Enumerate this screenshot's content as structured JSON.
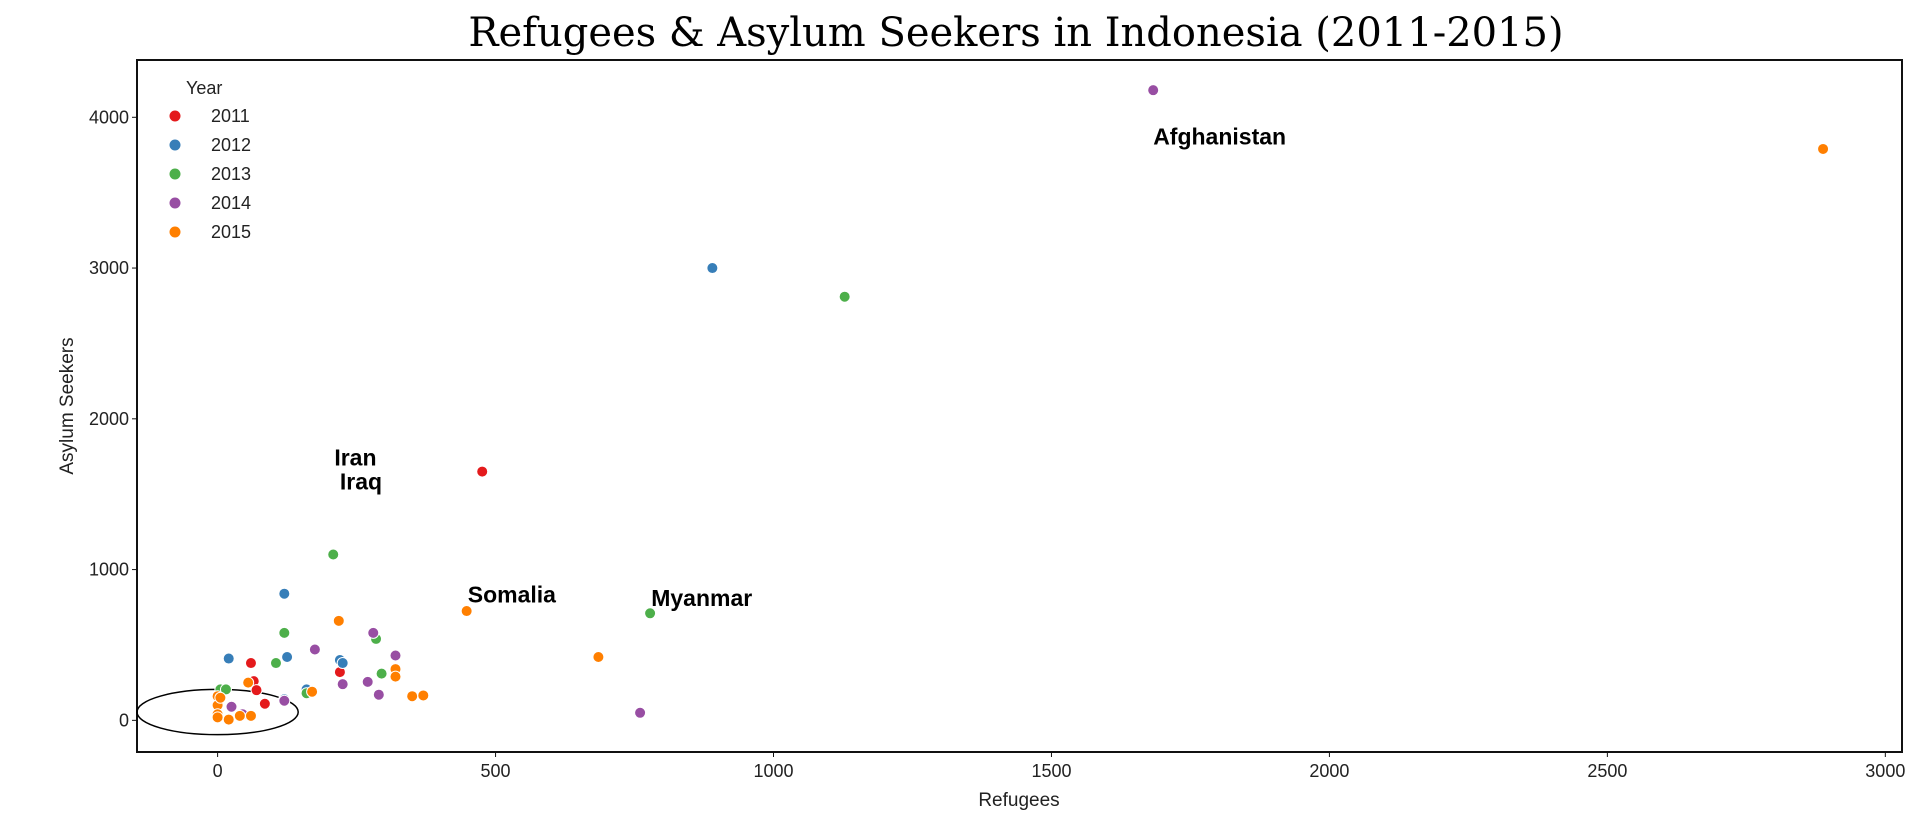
{
  "chart_data": {
    "type": "scatter",
    "title": "Refugees & Asylum Seekers in Indonesia (2011-2015)",
    "xlabel": "Refugees",
    "ylabel": "Asylum Seekers",
    "xlim": [
      -145,
      3030
    ],
    "ylim": [
      -210,
      4380
    ],
    "xticks": [
      0,
      500,
      1000,
      1500,
      2000,
      2500,
      3000
    ],
    "yticks": [
      0,
      1000,
      2000,
      3000,
      4000
    ],
    "grid": false,
    "legend": {
      "title": "Year",
      "placement": "top-left",
      "entries": [
        {
          "label": "2011",
          "color": "#e41a1c"
        },
        {
          "label": "2012",
          "color": "#377eb8"
        },
        {
          "label": "2013",
          "color": "#4daf4a"
        },
        {
          "label": "2014",
          "color": "#984ea3"
        },
        {
          "label": "2015",
          "color": "#ff7f00"
        }
      ]
    },
    "series": [
      {
        "name": "2011",
        "color": "#e41a1c",
        "points": [
          [
            476,
            1650
          ],
          [
            60,
            380
          ],
          [
            65,
            260
          ],
          [
            70,
            200
          ],
          [
            85,
            110
          ],
          [
            220,
            320
          ]
        ]
      },
      {
        "name": "2012",
        "color": "#377eb8",
        "points": [
          [
            890,
            3000
          ],
          [
            120,
            840
          ],
          [
            20,
            410
          ],
          [
            125,
            420
          ],
          [
            220,
            400
          ],
          [
            225,
            380
          ],
          [
            160,
            205
          ],
          [
            120,
            140
          ]
        ]
      },
      {
        "name": "2013",
        "color": "#4daf4a",
        "points": [
          [
            1128,
            2810
          ],
          [
            208,
            1100
          ],
          [
            120,
            580
          ],
          [
            285,
            540
          ],
          [
            105,
            380
          ],
          [
            295,
            310
          ],
          [
            5,
            205
          ],
          [
            15,
            205
          ],
          [
            160,
            180
          ],
          [
            778,
            710
          ]
        ]
      },
      {
        "name": "2014",
        "color": "#984ea3",
        "points": [
          [
            1683,
            4180
          ],
          [
            760,
            50
          ],
          [
            175,
            470
          ],
          [
            280,
            580
          ],
          [
            320,
            430
          ],
          [
            225,
            240
          ],
          [
            270,
            255
          ],
          [
            290,
            170
          ],
          [
            25,
            90
          ],
          [
            45,
            40
          ],
          [
            120,
            130
          ]
        ]
      },
      {
        "name": "2015",
        "color": "#ff7f00",
        "points": [
          [
            2888,
            3790
          ],
          [
            448,
            725
          ],
          [
            218,
            660
          ],
          [
            685,
            420
          ],
          [
            320,
            340
          ],
          [
            320,
            290
          ],
          [
            350,
            160
          ],
          [
            370,
            165
          ],
          [
            170,
            190
          ],
          [
            55,
            250
          ],
          [
            60,
            30
          ],
          [
            0,
            160
          ],
          [
            0,
            100
          ],
          [
            0,
            40
          ],
          [
            0,
            20
          ],
          [
            5,
            150
          ],
          [
            20,
            5
          ],
          [
            40,
            30
          ]
        ]
      }
    ],
    "annotations": [
      {
        "text": "Afghanistan",
        "x": 1683,
        "y": 3820
      },
      {
        "text": "Iran",
        "x": 210,
        "y": 1690
      },
      {
        "text": "Iraq",
        "x": 220,
        "y": 1530
      },
      {
        "text": "Somalia",
        "x": 450,
        "y": 780
      },
      {
        "text": "Myanmar",
        "x": 780,
        "y": 760
      }
    ],
    "highlight_ellipse": {
      "cx": 0,
      "cy": 55,
      "rx": 145,
      "ry": 150
    }
  }
}
